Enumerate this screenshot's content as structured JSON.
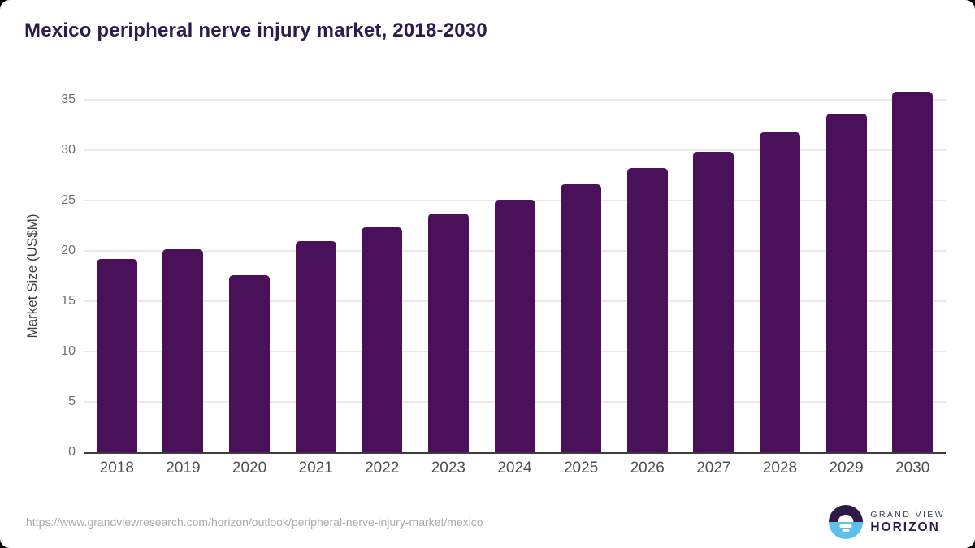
{
  "title": "Mexico peripheral nerve injury market, 2018-2030",
  "chart_data": {
    "type": "bar",
    "categories": [
      "2018",
      "2019",
      "2020",
      "2021",
      "2022",
      "2023",
      "2024",
      "2025",
      "2026",
      "2027",
      "2028",
      "2029",
      "2030"
    ],
    "values": [
      19.2,
      20.2,
      17.6,
      21.0,
      22.3,
      23.7,
      25.1,
      26.6,
      28.2,
      29.8,
      31.8,
      33.6,
      35.8
    ],
    "title": "Mexico peripheral nerve injury market, 2018-2030",
    "xlabel": "",
    "ylabel": "Market Size (US$M)",
    "ylim": [
      0,
      36.5
    ],
    "yticks": [
      0,
      5,
      10,
      15,
      20,
      25,
      30,
      35
    ],
    "grid": true,
    "legend": false,
    "bar_color": "#4A1059"
  },
  "footer": {
    "source_url": "https://www.grandviewresearch.com/horizon/outlook/peripheral-nerve-injury-market/mexico",
    "logo": {
      "line1": "GRAND VIEW",
      "line2": "HORIZON"
    }
  },
  "colors": {
    "bar": "#4A1059",
    "title": "#2D1A4E",
    "logo_purple": "#2E1A47",
    "logo_blue": "#5BC0EC"
  }
}
